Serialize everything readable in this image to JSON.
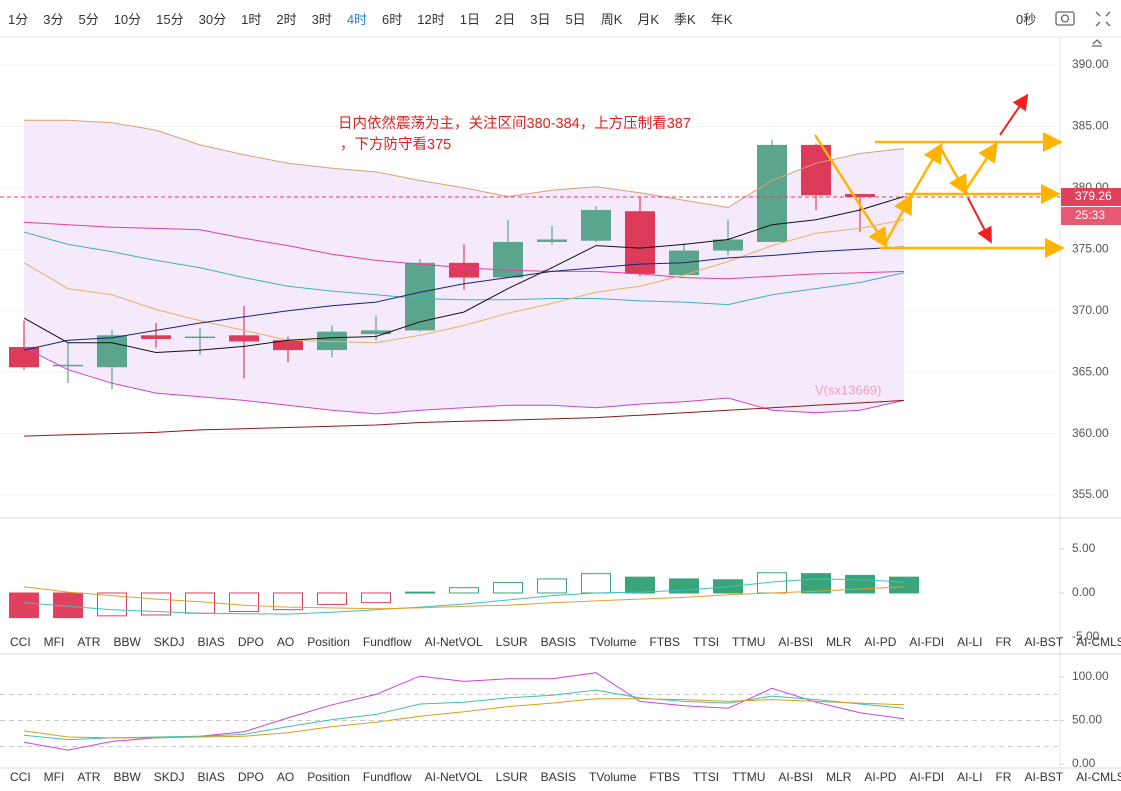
{
  "toolbar": {
    "intervals": [
      "1分",
      "3分",
      "5分",
      "10分",
      "15分",
      "30分",
      "1时",
      "2时",
      "3时",
      "4时",
      "6时",
      "12时",
      "1日",
      "2日",
      "3日",
      "5日",
      "周K",
      "月K",
      "季K",
      "年K"
    ],
    "active": 9,
    "timer": "0秒"
  },
  "indicator_tabs": [
    "CCI",
    "MFI",
    "ATR",
    "BBW",
    "SKDJ",
    "BIAS",
    "DPO",
    "AO",
    "Position",
    "Fundflow",
    "AI-NetVOL",
    "LSUR",
    "BASIS",
    "TVolume",
    "FTBS",
    "TTSI",
    "TTMU",
    "AI-BSI",
    "MLR",
    "AI-PD",
    "AI-FDI",
    "AI-LI",
    "FR",
    "AI-BST",
    "AI-CMLSI"
  ],
  "chart_data": [
    {
      "type": "candlestick",
      "ylim": [
        353.13,
        392.2
      ],
      "yticks": [
        {
          "value": 390,
          "label": "390.00"
        },
        {
          "value": 385,
          "label": "385.00"
        },
        {
          "value": 380,
          "label": "380.00"
        },
        {
          "value": 375,
          "label": "375.00"
        },
        {
          "value": 370,
          "label": "370.00"
        },
        {
          "value": 365,
          "label": "365.00"
        },
        {
          "value": 360,
          "label": "360.00"
        },
        {
          "value": 355,
          "label": "355.00"
        }
      ],
      "grid": true,
      "up_color": "#5ba58c",
      "down_color": "#dc3c5a",
      "band_color": "#f3e6fb",
      "open": [
        367.05,
        365.5,
        365.4,
        368.0,
        367.8,
        368.0,
        367.6,
        366.8,
        368.1,
        368.4,
        373.9,
        372.7,
        375.6,
        375.7,
        378.1,
        372.9,
        374.9,
        375.6,
        383.5,
        379.5,
        null
      ],
      "high": [
        369.2,
        367.4,
        368.4,
        369.0,
        368.6,
        370.4,
        367.9,
        368.8,
        369.6,
        374.2,
        375.4,
        377.4,
        376.9,
        378.5,
        379.3,
        375.5,
        377.4,
        383.9,
        383.6,
        379.5,
        null
      ],
      "low": [
        365.2,
        364.1,
        363.6,
        367.0,
        366.4,
        364.5,
        365.8,
        366.2,
        367.6,
        368.3,
        371.7,
        372.7,
        375.4,
        375.6,
        372.8,
        372.9,
        374.5,
        375.6,
        378.2,
        376.4,
        null
      ],
      "close": [
        365.4,
        365.6,
        368.0,
        367.7,
        367.9,
        367.5,
        366.8,
        368.3,
        368.4,
        373.9,
        372.7,
        375.6,
        375.8,
        378.2,
        373.0,
        374.9,
        375.8,
        383.5,
        379.4,
        379.26,
        null
      ],
      "series": [
        {
          "color": "#d9a070",
          "values": [
            385.5,
            385.5,
            385.3,
            384.7,
            383.5,
            382.7,
            382.0,
            381.6,
            381.3,
            380.6,
            380.0,
            379.3,
            379.8,
            380.1,
            379.6,
            379.0,
            378.4,
            380.6,
            382.0,
            382.8,
            383.2
          ]
        },
        {
          "color": "#cc44cc",
          "values": [
            367.0,
            365.2,
            364.1,
            363.3,
            363.0,
            362.7,
            362.3,
            361.9,
            361.6,
            361.9,
            362.1,
            362.3,
            362.3,
            362.1,
            362.4,
            362.6,
            362.9,
            361.9,
            361.7,
            361.9,
            362.7
          ]
        },
        {
          "color": "#e040a0",
          "values": [
            377.2,
            377.0,
            376.8,
            376.7,
            376.6,
            375.9,
            375.3,
            374.6,
            374.1,
            373.8,
            373.5,
            373.3,
            373.2,
            373.2,
            373.0,
            372.7,
            372.6,
            372.8,
            373.0,
            373.1,
            373.2
          ]
        },
        {
          "color": "#40b0c0",
          "values": [
            376.4,
            375.4,
            374.8,
            374.1,
            373.5,
            372.7,
            372.0,
            371.6,
            371.3,
            371.0,
            370.9,
            370.9,
            371.0,
            371.0,
            370.8,
            370.7,
            370.5,
            371.3,
            371.8,
            372.3,
            373.1
          ]
        },
        {
          "color": "#e8b060",
          "values": [
            373.9,
            371.8,
            371.3,
            370.1,
            369.2,
            368.4,
            367.6,
            367.5,
            367.4,
            368.0,
            368.8,
            369.8,
            370.6,
            371.5,
            372.0,
            372.9,
            374.0,
            375.3,
            376.3,
            376.7,
            377.4
          ]
        },
        {
          "color": "#1a237e",
          "values": [
            366.8,
            367.6,
            367.8,
            368.4,
            369.0,
            369.5,
            370.0,
            370.4,
            370.7,
            371.5,
            372.2,
            372.7,
            373.2,
            373.5,
            373.8,
            373.9,
            374.3,
            374.5,
            374.8,
            375.0,
            375.2
          ]
        },
        {
          "color": "#111111",
          "values": [
            369.4,
            367.4,
            367.4,
            366.6,
            366.8,
            367.1,
            367.6,
            367.8,
            367.9,
            369.1,
            369.9,
            371.8,
            373.5,
            375.3,
            375.1,
            375.4,
            375.8,
            377.0,
            377.4,
            378.2,
            379.3
          ]
        },
        {
          "color": "#8b1a1a",
          "values": [
            359.8,
            359.9,
            360.0,
            360.1,
            360.3,
            360.4,
            360.5,
            360.6,
            360.7,
            360.9,
            361.0,
            361.1,
            361.2,
            361.3,
            361.5,
            361.7,
            361.9,
            362.1,
            362.3,
            362.5,
            362.7
          ]
        }
      ],
      "last_price": 379.26,
      "countdown": "25:33",
      "annotation": [
        "日内依然震荡为主，关注区间380-384，上方压制看387",
        "，下方防守看375"
      ],
      "indicator_label": "V(sx13669)"
    },
    {
      "type": "histogram",
      "ylim": [
        -5.23,
        8.52
      ],
      "yticks": [
        {
          "value": 5,
          "label": "5.00"
        },
        {
          "value": 0,
          "label": "0.00"
        },
        {
          "value": -5,
          "label": "-5.00"
        }
      ],
      "up_color": "#3aa57a",
      "down_color": "#e0415f",
      "values": [
        -2.8,
        -2.8,
        -2.6,
        -2.5,
        -2.3,
        -2.1,
        -1.9,
        -1.3,
        -1.1,
        0.1,
        0.6,
        1.2,
        1.6,
        2.2,
        1.8,
        1.6,
        1.5,
        2.3,
        2.2,
        2.0,
        1.8
      ],
      "series": [
        {
          "color": "#40c0c0",
          "values": [
            -1.1,
            -1.5,
            -1.9,
            -2.1,
            -2.3,
            -2.35,
            -2.4,
            -2.2,
            -1.9,
            -1.6,
            -1.25,
            -0.8,
            -0.3,
            0.0,
            0.1,
            0.3,
            0.7,
            1.25,
            1.6,
            1.5,
            1.25
          ]
        },
        {
          "color": "#e0a030",
          "values": [
            0.7,
            0.1,
            -0.3,
            -0.7,
            -1.0,
            -1.4,
            -1.6,
            -1.7,
            -1.8,
            -1.7,
            -1.5,
            -1.4,
            -1.1,
            -0.9,
            -0.7,
            -0.5,
            -0.2,
            0.0,
            0.2,
            0.45,
            0.7
          ]
        }
      ]
    },
    {
      "type": "line",
      "ylim": [
        -6.9,
        125.3
      ],
      "yticks": [
        {
          "value": 100,
          "label": "100.00"
        },
        {
          "value": 50,
          "label": "50.00"
        },
        {
          "value": 0,
          "label": "0.00"
        }
      ],
      "levels": [
        80,
        50,
        20
      ],
      "series": [
        {
          "color": "#cc44dd",
          "values": [
            25,
            16,
            26,
            30,
            32,
            37,
            53,
            68,
            80,
            101,
            95,
            98,
            98,
            105,
            72,
            67,
            64,
            87,
            71,
            59,
            52
          ]
        },
        {
          "color": "#40c0b0",
          "values": [
            33,
            28,
            30,
            31,
            32,
            34,
            43,
            51,
            57,
            69,
            71,
            76,
            79,
            85,
            76,
            72,
            70,
            78,
            74,
            69,
            64
          ]
        },
        {
          "color": "#d4a020",
          "values": [
            38,
            31,
            30,
            30,
            31,
            32,
            36,
            43,
            48,
            55,
            60,
            66,
            70,
            75,
            75,
            74,
            72,
            74,
            72,
            70,
            68
          ]
        }
      ]
    }
  ]
}
